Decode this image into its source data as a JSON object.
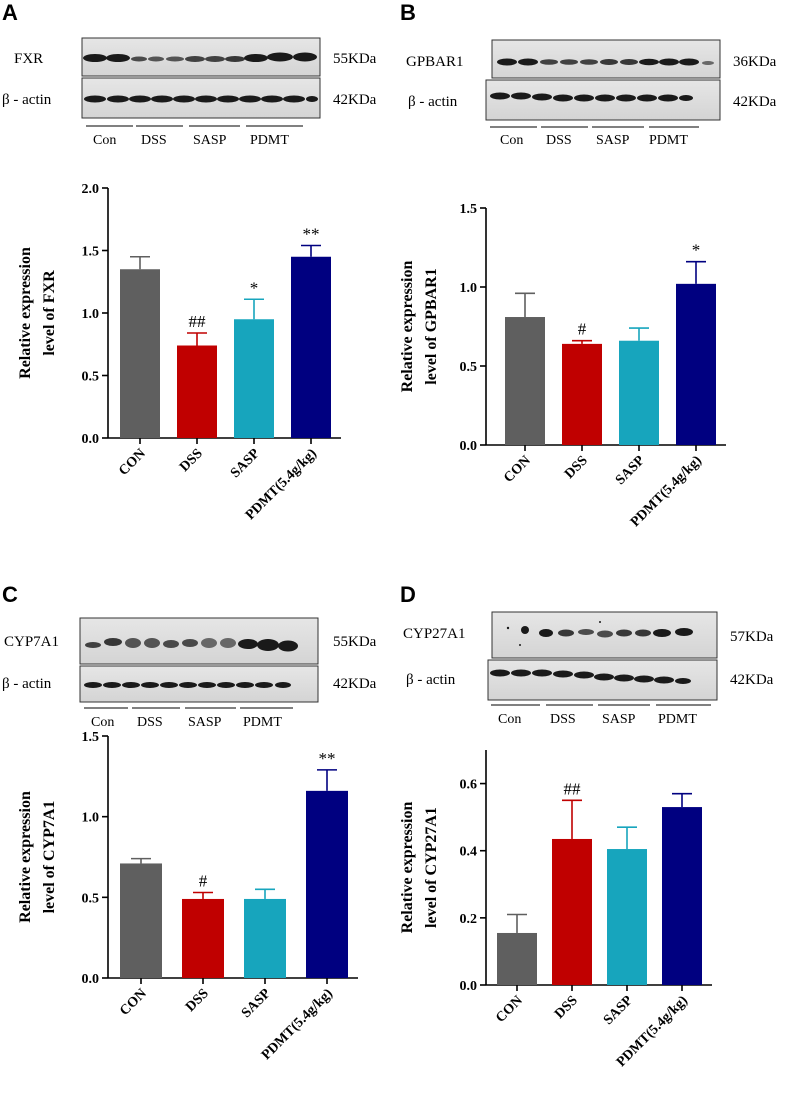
{
  "panels": [
    {
      "id": "A",
      "label": "A",
      "blot": {
        "target": "FXR",
        "target_kda": "55KDa",
        "control": "β - actin",
        "control_kda": "42KDa",
        "groups": [
          "Con",
          "DSS",
          "SASP",
          "PDMT"
        ]
      }
    },
    {
      "id": "B",
      "label": "B",
      "blot": {
        "target": "GPBAR1",
        "target_kda": "36KDa",
        "control": "β - actin",
        "control_kda": "42KDa",
        "groups": [
          "Con",
          "DSS",
          "SASP",
          "PDMT"
        ]
      }
    },
    {
      "id": "C",
      "label": "C",
      "blot": {
        "target": "CYP7A1",
        "target_kda": "55KDa",
        "control": "β - actin",
        "control_kda": "42KDa",
        "groups": [
          "Con",
          "DSS",
          "SASP",
          "PDMT"
        ]
      }
    },
    {
      "id": "D",
      "label": "D",
      "blot": {
        "target": "CYP27A1",
        "target_kda": "57KDa",
        "control": "β - actin",
        "control_kda": "42KDa",
        "groups": [
          "Con",
          "DSS",
          "SASP",
          "PDMT"
        ]
      }
    }
  ],
  "colors": {
    "CON": "#5f5f5f",
    "DSS": "#c00000",
    "SASP": "#17a5bd",
    "PDMT": "#000080"
  },
  "chart_data": [
    {
      "type": "bar",
      "panel": "A",
      "categories": [
        "CON",
        "DSS",
        "SASP",
        "PDMT(5.4g/kg)"
      ],
      "values": [
        1.35,
        0.74,
        0.95,
        1.45
      ],
      "errors": [
        0.1,
        0.1,
        0.16,
        0.09
      ],
      "annotations": [
        "",
        "##",
        "*",
        "**"
      ],
      "ylabel_line1": "Relative  expression",
      "ylabel_line2": "level of FXR",
      "ylim": [
        0,
        2.0
      ],
      "yticks": [
        "0.0",
        "0.5",
        "1.0",
        "1.5",
        "2.0"
      ],
      "ytick_values": [
        0,
        0.5,
        1.0,
        1.5,
        2.0
      ]
    },
    {
      "type": "bar",
      "panel": "B",
      "categories": [
        "CON",
        "DSS",
        "SASP",
        "PDMT(5.4g/kg)"
      ],
      "values": [
        0.81,
        0.64,
        0.66,
        1.02
      ],
      "errors": [
        0.15,
        0.02,
        0.08,
        0.14
      ],
      "annotations": [
        "",
        "#",
        "",
        "*"
      ],
      "ylabel_line1": "Relative  expression",
      "ylabel_line2": "level of GPBAR1",
      "ylim": [
        0,
        1.5
      ],
      "yticks": [
        "0.0",
        "0.5",
        "1.0",
        "1.5"
      ],
      "ytick_values": [
        0,
        0.5,
        1.0,
        1.5
      ]
    },
    {
      "type": "bar",
      "panel": "C",
      "categories": [
        "CON",
        "DSS",
        "SASP",
        "PDMT(5.4g/kg)"
      ],
      "values": [
        0.71,
        0.49,
        0.49,
        1.16
      ],
      "errors": [
        0.03,
        0.04,
        0.06,
        0.13
      ],
      "annotations": [
        "",
        "#",
        "",
        "**"
      ],
      "ylabel_line1": "Relative  expression",
      "ylabel_line2": "level of CYP7A1",
      "ylim": [
        0,
        1.5
      ],
      "yticks": [
        "0.0",
        "0.5",
        "1.0",
        "1.5"
      ],
      "ytick_values": [
        0,
        0.5,
        1.0,
        1.5
      ]
    },
    {
      "type": "bar",
      "panel": "D",
      "categories": [
        "CON",
        "DSS",
        "SASP",
        "PDMT(5.4g/kg)"
      ],
      "values": [
        0.155,
        0.435,
        0.405,
        0.53
      ],
      "errors": [
        0.055,
        0.115,
        0.065,
        0.04
      ],
      "annotations": [
        "",
        "##",
        "",
        ""
      ],
      "ylabel_line1": "Relative  expression",
      "ylabel_line2": "level of CYP27A1",
      "ylim": [
        0,
        0.7
      ],
      "yticks": [
        "0.0",
        "0.2",
        "0.4",
        "0.6"
      ],
      "ytick_values": [
        0,
        0.2,
        0.4,
        0.6
      ]
    }
  ]
}
